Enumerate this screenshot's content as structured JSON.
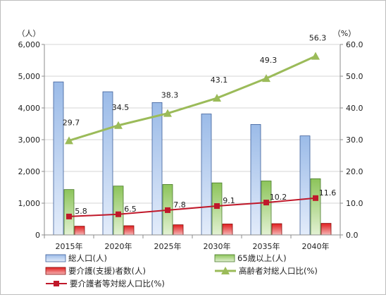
{
  "chart_data": {
    "type": "bar",
    "categories": [
      "2015年",
      "2020年",
      "2025年",
      "2030年",
      "2035年",
      "2040年"
    ],
    "y_left": {
      "unit": "（人）",
      "ylim": [
        0,
        6000
      ],
      "ticks": [
        "0",
        "1,000",
        "2,000",
        "3,000",
        "4,000",
        "5,000",
        "6,000"
      ]
    },
    "y_right": {
      "unit": "（%）",
      "ylim": [
        0,
        60
      ],
      "ticks": [
        "0.0",
        "10.0",
        "20.0",
        "30.0",
        "40.0",
        "50.0",
        "60.0"
      ]
    },
    "grid": true,
    "legend": "bottom",
    "series": [
      {
        "name": "総人口(人)",
        "kind": "bar",
        "axis": "left",
        "color": "#a9c4ea",
        "values": [
          4820,
          4510,
          4170,
          3810,
          3480,
          3120
        ]
      },
      {
        "name": "65歳以上(人)",
        "kind": "bar",
        "axis": "left",
        "color": "#9acd66",
        "values": [
          1430,
          1540,
          1590,
          1640,
          1700,
          1770
        ]
      },
      {
        "name": "要介護(支援)者数(人)",
        "kind": "bar",
        "axis": "left",
        "color": "#e32a2a",
        "values": [
          275,
          290,
          320,
          345,
          355,
          365
        ]
      },
      {
        "name": "高齢者対総人口比(%)",
        "kind": "line",
        "axis": "right",
        "color": "#9bbb59",
        "marker": "triangle",
        "values": [
          29.7,
          34.5,
          38.3,
          43.1,
          49.3,
          56.3
        ],
        "labels": [
          "29.7",
          "34.5",
          "38.3",
          "43.1",
          "49.3",
          "56.3"
        ]
      },
      {
        "name": "要介護者等対総人口比(%)",
        "kind": "line",
        "axis": "right",
        "color": "#c0182a",
        "marker": "square",
        "values": [
          5.8,
          6.5,
          7.8,
          9.1,
          10.2,
          11.6
        ],
        "labels": [
          "5.8",
          "6.5",
          "7.8",
          "9.1",
          "10.2",
          "11.6"
        ]
      }
    ]
  }
}
